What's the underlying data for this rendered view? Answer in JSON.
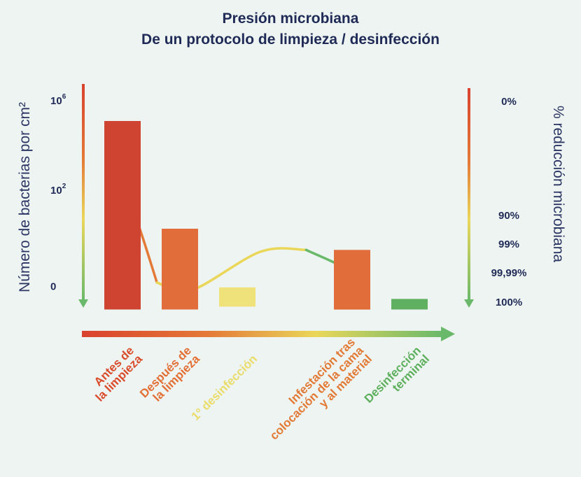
{
  "chart_data": {
    "type": "bar",
    "title_lines": [
      "Presión microbiana",
      "De un protocolo de limpieza / desinfección"
    ],
    "ylabel": "Número de bacterias por cm²",
    "ylabel_right": "% reducción microbiana",
    "y_ticks_left": [
      {
        "base": "10",
        "exp": "6",
        "level": "1e6"
      },
      {
        "base": "10",
        "exp": "2",
        "level": "1e2"
      },
      {
        "base": "0",
        "exp": "",
        "level": "0"
      }
    ],
    "y_ticks_right": [
      "0%",
      "90%",
      "99%",
      "99,99%",
      "100%"
    ],
    "categories": [
      {
        "lines": [
          "Antes de",
          "la limpieza"
        ],
        "color": "#d94b2b"
      },
      {
        "lines": [
          "Después de",
          "la limpieza"
        ],
        "color": "#e36f35"
      },
      {
        "lines": [
          "1º desinfección"
        ],
        "color": "#e9dc6a"
      },
      {
        "lines": [
          "Infestación tras",
          "colocación de la cama",
          "y al material"
        ],
        "color": "#e27a36"
      },
      {
        "lines": [
          "Desinfección",
          "terminal"
        ],
        "color": "#5daf5d"
      }
    ],
    "categories_x": [
      1,
      2,
      3,
      4,
      5
    ],
    "bars": [
      {
        "low": -0.1,
        "high": 0.88,
        "color": "#cf4431"
      },
      {
        "low": -0.1,
        "high": 0.32,
        "color": "#e06d3a"
      },
      {
        "low": -0.085,
        "high": 0.015,
        "color": "#f0e27a"
      },
      {
        "low": -0.1,
        "high": 0.21,
        "color": "#e06d3a"
      },
      {
        "low": -0.1,
        "high": -0.045,
        "color": "#5fb061"
      }
    ],
    "trend_points": [
      [
        1.0,
        0.56
      ],
      [
        1.3,
        0.32
      ],
      [
        1.6,
        0.04
      ],
      [
        2.2,
        0.0
      ],
      [
        3.2,
        0.2
      ],
      [
        3.6,
        0.21
      ],
      [
        4.0,
        0.09
      ],
      [
        4.2,
        -0.045
      ]
    ],
    "colors": {
      "red": "#d9422d",
      "orange": "#e47a38",
      "yellow": "#ead75a",
      "green": "#6ab96a",
      "text": "#1f2a57"
    }
  }
}
